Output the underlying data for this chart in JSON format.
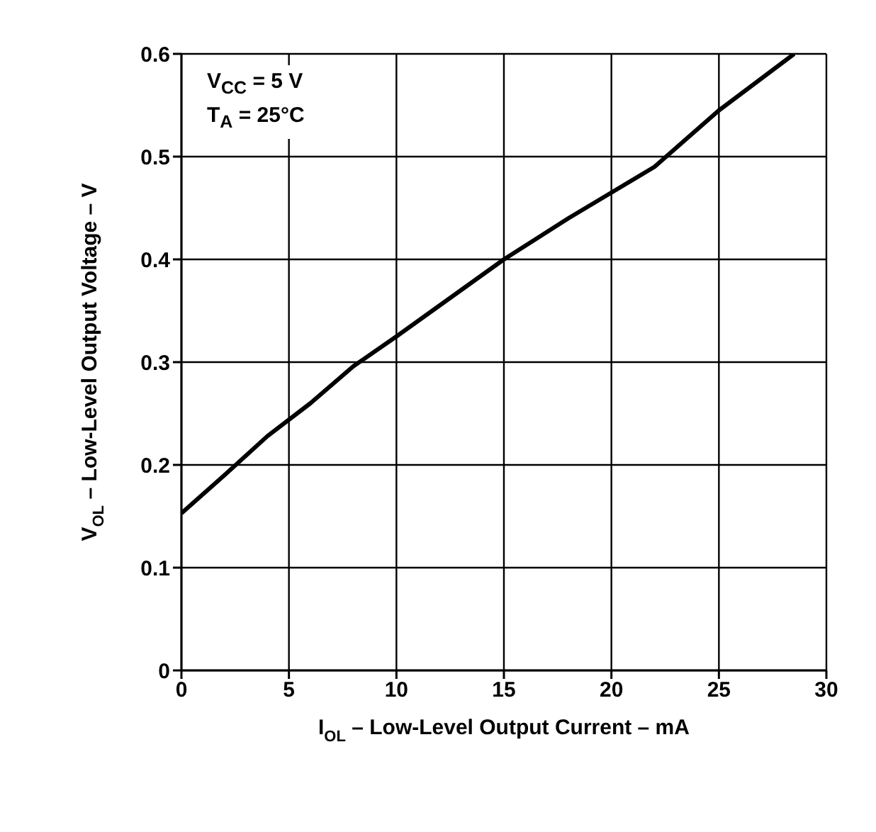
{
  "chart_data": {
    "type": "line",
    "xlabel": "I$_{OL}$ – Low-Level Output Current – mA",
    "ylabel": "V$_{OL}$ – Low-Level Output Voltage – V",
    "annotations": [
      "V$_{CC}$ = 5 V",
      "T$_{A}$ = 25°C"
    ],
    "x": [
      0,
      2,
      4,
      6,
      8,
      10,
      12,
      15,
      18,
      20,
      22,
      25,
      28.5
    ],
    "series": [
      {
        "color": "#000000",
        "values": [
          0.153,
          0.19,
          0.228,
          0.26,
          0.296,
          0.325,
          0.355,
          0.4,
          0.44,
          0.465,
          0.49,
          0.545,
          0.6
        ]
      }
    ],
    "xlim": [
      0,
      30
    ],
    "xticks": [
      0,
      5,
      10,
      15,
      20,
      25,
      30
    ],
    "ylim": [
      0,
      0.6
    ],
    "yticks": [
      0,
      0.1,
      0.2,
      0.3,
      0.4,
      0.5,
      0.6
    ],
    "grid": true,
    "legend": false,
    "marker": "none",
    "line_style": "solid"
  }
}
